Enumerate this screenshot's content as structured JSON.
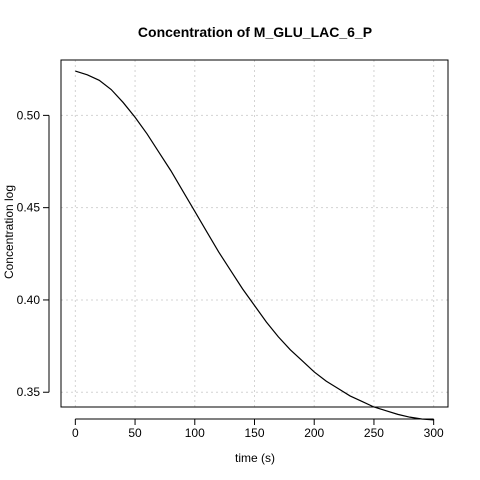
{
  "chart_data": {
    "type": "line",
    "title": "Concentration of M_GLU_LAC_6_P",
    "xlabel": "time (s)",
    "ylabel": "Concentration log",
    "xlim": [
      -12,
      312
    ],
    "ylim": [
      0.342,
      0.53
    ],
    "x_ticks": [
      0,
      50,
      100,
      150,
      200,
      250,
      300
    ],
    "y_ticks": [
      0.35,
      0.4,
      0.45,
      0.5
    ],
    "x_tick_labels": [
      "0",
      "50",
      "100",
      "150",
      "200",
      "250",
      "300"
    ],
    "y_tick_labels": [
      "0.35",
      "0.40",
      "0.45",
      "0.50"
    ],
    "grid": true,
    "legend": "none",
    "colors": {
      "line": "#000000",
      "grid": "#d3d3d3",
      "axis": "#000000",
      "background": "#ffffff"
    },
    "series": [
      {
        "x": [
          0,
          10,
          20,
          30,
          40,
          50,
          60,
          70,
          80,
          90,
          100,
          110,
          120,
          130,
          140,
          150,
          160,
          170,
          180,
          190,
          200,
          210,
          220,
          230,
          240,
          250,
          260,
          270,
          280,
          290,
          300
        ],
        "values": [
          0.524,
          0.522,
          0.519,
          0.514,
          0.507,
          0.499,
          0.49,
          0.48,
          0.47,
          0.459,
          0.448,
          0.437,
          0.426,
          0.416,
          0.406,
          0.397,
          0.388,
          0.38,
          0.373,
          0.367,
          0.361,
          0.356,
          0.352,
          0.348,
          0.345,
          0.342,
          0.34,
          0.338,
          0.3365,
          0.3355,
          0.335
        ]
      }
    ]
  }
}
